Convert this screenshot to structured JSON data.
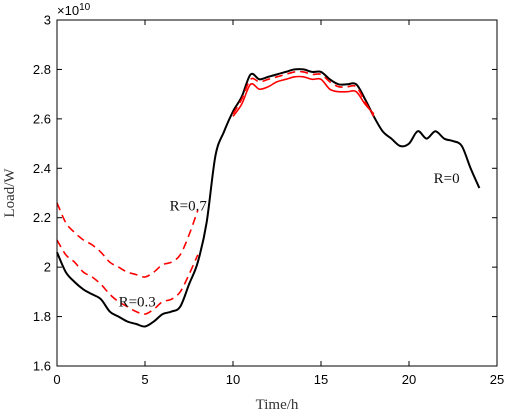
{
  "chart_data": {
    "type": "line",
    "title": "",
    "xlabel": "Time/h",
    "ylabel": "Load/W",
    "y_multiplier_label": "×10",
    "y_multiplier_exponent": "10",
    "xlim": [
      0,
      25
    ],
    "ylim": [
      1.6,
      3.0
    ],
    "x_ticks": [
      0,
      5,
      10,
      15,
      20,
      25
    ],
    "x_tick_labels": [
      "0",
      "5",
      "10",
      "15",
      "20",
      "25"
    ],
    "y_ticks": [
      1.6,
      1.8,
      2.0,
      2.2,
      2.4,
      2.6,
      2.8,
      3.0
    ],
    "y_tick_labels": [
      "1.6",
      "1.8",
      "2",
      "2.2",
      "2.4",
      "2.6",
      "2.8",
      "3"
    ],
    "grid": false,
    "colors": {
      "base": "#000000",
      "adjusted": "#ff0000"
    },
    "series": [
      {
        "id": "r0",
        "style": "solid",
        "color": "#000000",
        "x": [
          0,
          0.5,
          1,
          1.5,
          2,
          2.5,
          3,
          3.5,
          4,
          4.5,
          5,
          5.5,
          6,
          6.5,
          7,
          7.5,
          8,
          8.5,
          9,
          9.5,
          10,
          10.5,
          11,
          11.5,
          12,
          12.5,
          13,
          13.5,
          14,
          14.5,
          15,
          15.5,
          16,
          16.5,
          17,
          17.5,
          18,
          18.5,
          19,
          19.5,
          20,
          20.5,
          21,
          21.5,
          22,
          22.5,
          23,
          23.5,
          24
        ],
        "values": [
          2.06,
          1.98,
          1.94,
          1.91,
          1.89,
          1.87,
          1.82,
          1.8,
          1.78,
          1.77,
          1.76,
          1.78,
          1.81,
          1.82,
          1.84,
          1.93,
          2.02,
          2.18,
          2.45,
          2.55,
          2.63,
          2.69,
          2.78,
          2.76,
          2.77,
          2.78,
          2.79,
          2.8,
          2.8,
          2.79,
          2.79,
          2.76,
          2.74,
          2.74,
          2.74,
          2.68,
          2.61,
          2.55,
          2.52,
          2.49,
          2.5,
          2.55,
          2.52,
          2.55,
          2.52,
          2.51,
          2.49,
          2.4,
          2.32
        ]
      },
      {
        "id": "r0-3",
        "style": "dashed",
        "color": "#ff0000",
        "x": [
          0,
          0.5,
          1,
          1.5,
          2,
          2.5,
          3,
          3.5,
          4,
          4.5,
          5,
          5.5,
          6,
          6.5,
          7,
          7.5,
          8
        ],
        "values": [
          2.11,
          2.05,
          2.02,
          1.98,
          1.96,
          1.93,
          1.89,
          1.86,
          1.84,
          1.82,
          1.81,
          1.83,
          1.86,
          1.87,
          1.9,
          1.97,
          2.05
        ]
      },
      {
        "id": "r0-7",
        "style": "dashed",
        "color": "#ff0000",
        "x": [
          0,
          0.5,
          1,
          1.5,
          2,
          2.5,
          3,
          3.5,
          4,
          4.5,
          5,
          5.5,
          6,
          6.5,
          7,
          7.5,
          8
        ],
        "values": [
          2.26,
          2.18,
          2.14,
          2.11,
          2.09,
          2.06,
          2.02,
          2.0,
          1.98,
          1.97,
          1.96,
          1.98,
          2.01,
          2.02,
          2.05,
          2.13,
          2.23
        ]
      },
      {
        "id": "red-dashed-day",
        "style": "dashed",
        "color": "#ff0000",
        "x": [
          10,
          10.5,
          11,
          11.5,
          12,
          12.5,
          13,
          13.5,
          14,
          14.5,
          15,
          15.5,
          16,
          16.5,
          17,
          17.5,
          18
        ],
        "values": [
          2.62,
          2.68,
          2.76,
          2.75,
          2.76,
          2.77,
          2.78,
          2.79,
          2.79,
          2.78,
          2.78,
          2.75,
          2.73,
          2.73,
          2.73,
          2.67,
          2.61
        ]
      },
      {
        "id": "red-solid-day",
        "style": "solid",
        "color": "#ff0000",
        "x": [
          10,
          10.5,
          11,
          11.5,
          12,
          12.5,
          13,
          13.5,
          14,
          14.5,
          15,
          15.5,
          16,
          16.5,
          17,
          17.5,
          18
        ],
        "values": [
          2.61,
          2.66,
          2.74,
          2.72,
          2.73,
          2.75,
          2.76,
          2.77,
          2.77,
          2.76,
          2.76,
          2.72,
          2.71,
          2.71,
          2.71,
          2.66,
          2.62
        ]
      }
    ],
    "annotations": [
      {
        "text": "R=0.7",
        "x": 6.4,
        "y": 2.23
      },
      {
        "text": "R=0.3",
        "x": 3.5,
        "y": 1.84
      },
      {
        "text": "R=0",
        "x": 21.4,
        "y": 2.34
      }
    ]
  }
}
